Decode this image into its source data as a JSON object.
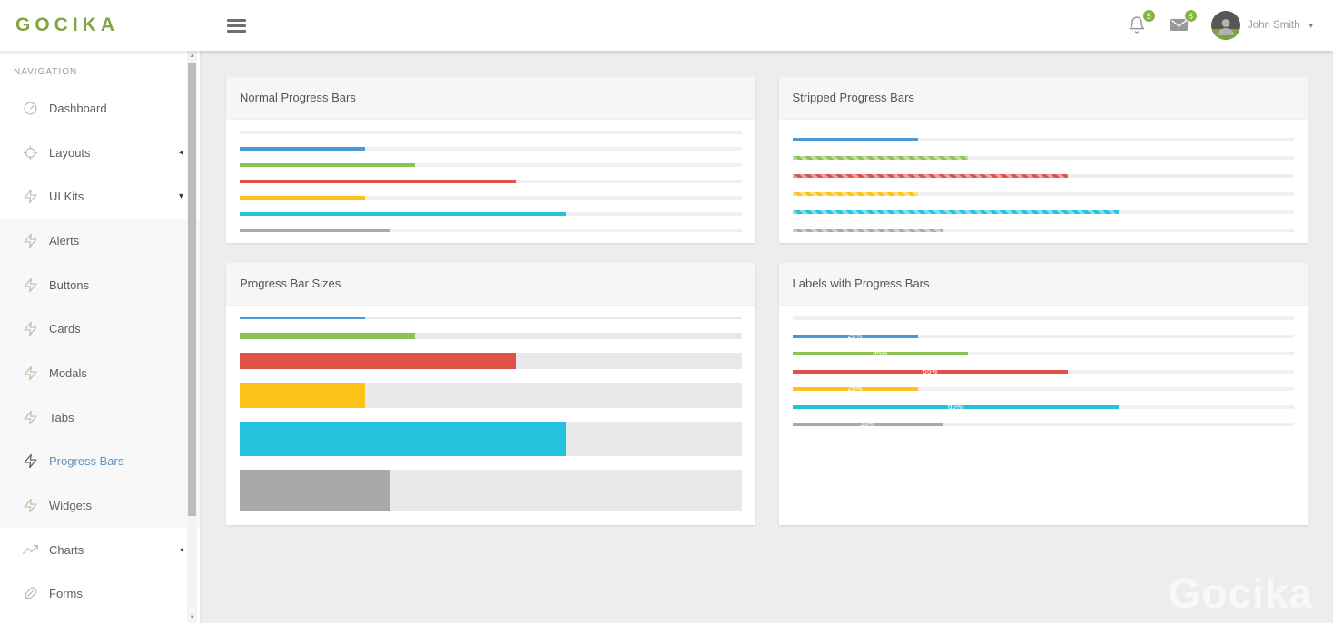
{
  "header": {
    "logo": "GOCIKA",
    "hamburger_icon": "hamburger-icon",
    "notifications": {
      "icon": "bell-icon",
      "count": "5"
    },
    "messages": {
      "icon": "envelope-icon",
      "count": "5"
    },
    "user": {
      "name": "John Smith",
      "avatar_icon": "person-icon",
      "caret_icon": "chevron-down-icon"
    }
  },
  "sidebar": {
    "section_label": "NAVIGATION",
    "items": [
      {
        "label": "Dashboard",
        "icon": "gauge-icon",
        "caret": null,
        "submenu": false,
        "active": false
      },
      {
        "label": "Layouts",
        "icon": "crosshair-icon",
        "caret": "left",
        "submenu": false,
        "active": false
      },
      {
        "label": "UI Kits",
        "icon": "zap-icon",
        "caret": "down",
        "submenu": false,
        "active": false
      },
      {
        "label": "Alerts",
        "icon": "zap-icon",
        "caret": null,
        "submenu": true,
        "active": false
      },
      {
        "label": "Buttons",
        "icon": "zap-icon",
        "caret": null,
        "submenu": true,
        "active": false
      },
      {
        "label": "Cards",
        "icon": "zap-icon",
        "caret": null,
        "submenu": true,
        "active": false
      },
      {
        "label": "Modals",
        "icon": "zap-icon",
        "caret": null,
        "submenu": true,
        "active": false
      },
      {
        "label": "Tabs",
        "icon": "zap-icon",
        "caret": null,
        "submenu": true,
        "active": false
      },
      {
        "label": "Progress Bars",
        "icon": "zap-icon",
        "caret": null,
        "submenu": true,
        "active": true
      },
      {
        "label": "Widgets",
        "icon": "zap-icon",
        "caret": null,
        "submenu": true,
        "active": false
      },
      {
        "label": "Charts",
        "icon": "trending-up-icon",
        "caret": "left",
        "submenu": false,
        "active": false
      },
      {
        "label": "Forms",
        "icon": "feather-icon",
        "caret": null,
        "submenu": false,
        "active": false
      }
    ]
  },
  "cards": [
    {
      "title": "Normal Progress Bars",
      "type": "normal",
      "bars": [
        {
          "color": null,
          "value": 0,
          "striped": false
        },
        {
          "color": "blue",
          "value": 25,
          "striped": false
        },
        {
          "color": "green",
          "value": 35,
          "striped": false
        },
        {
          "color": "red",
          "value": 55,
          "striped": false
        },
        {
          "color": "yellow",
          "value": 25,
          "striped": false
        },
        {
          "color": "cyan",
          "value": 65,
          "striped": false
        },
        {
          "color": "gray",
          "value": 30,
          "striped": false
        }
      ]
    },
    {
      "title": "Stripped Progress Bars",
      "type": "striped",
      "bars": [
        {
          "color": "blue",
          "value": 25,
          "striped": false
        },
        {
          "color": "green",
          "value": 35,
          "striped": true
        },
        {
          "color": "red",
          "value": 55,
          "striped": true
        },
        {
          "color": "yellow",
          "value": 25,
          "striped": true
        },
        {
          "color": "cyan",
          "value": 65,
          "striped": true
        },
        {
          "color": "gray",
          "value": 30,
          "striped": true
        }
      ]
    },
    {
      "title": "Progress Bar Sizes",
      "type": "sizes",
      "bars": [
        {
          "color": "blue",
          "value": 25,
          "striped": false,
          "height": 2
        },
        {
          "color": "green",
          "value": 35,
          "striped": false,
          "height": 7
        },
        {
          "color": "red",
          "value": 55,
          "striped": false,
          "height": 18
        },
        {
          "color": "yellow",
          "value": 25,
          "striped": false,
          "height": 28
        },
        {
          "color": "cyan",
          "value": 65,
          "striped": false,
          "height": 38
        },
        {
          "color": "gray",
          "value": 30,
          "striped": false,
          "height": 46
        }
      ]
    },
    {
      "title": "Labels with Progress Bars",
      "type": "labels",
      "bars": [
        {
          "color": null,
          "value": 0,
          "striped": false,
          "label": ""
        },
        {
          "color": "blue",
          "value": 25,
          "striped": false,
          "label": "25%"
        },
        {
          "color": "green",
          "value": 35,
          "striped": false,
          "label": "35%"
        },
        {
          "color": "red",
          "value": 55,
          "striped": false,
          "label": "55%"
        },
        {
          "color": "yellow",
          "value": 25,
          "striped": false,
          "label": "25%"
        },
        {
          "color": "cyan",
          "value": 65,
          "striped": false,
          "label": "65%"
        },
        {
          "color": "gray",
          "value": 30,
          "striped": false,
          "label": "30%"
        }
      ]
    }
  ],
  "watermark": "Gocika",
  "colors": {
    "palette": {
      "blue": "#4a99d3",
      "green": "#8fc255",
      "red": "#e25148",
      "yellow": "#fcc419",
      "cyan": "#25c2dd",
      "gray": "#a9a9a9"
    },
    "track": "#f0f0f0",
    "track_bold": "#e8eaea",
    "logo_green": "#85a440",
    "badge_green": "#82b63e",
    "active_link": "#6290bd",
    "icon_muted": "#b7c0aa"
  }
}
